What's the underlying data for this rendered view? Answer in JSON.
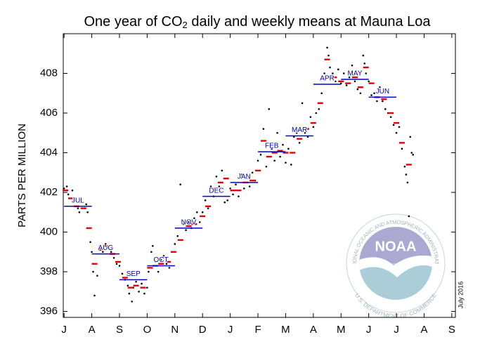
{
  "chart_data": {
    "type": "scatter",
    "title_parts": [
      "One year of CO",
      "2",
      " daily and weekly means at Mauna Loa"
    ],
    "ylabel": "PARTS PER MILLION",
    "annotation": "July 2016",
    "logo": {
      "text": "NOAA",
      "ring_top": "NATIONAL OCEANIC AND ATMOSPHERIC ADMINISTRATION",
      "ring_bottom": "U.S. DEPARTMENT OF COMMERCE"
    },
    "xlim": [
      -0.03,
      14.13
    ],
    "xticks": [
      {
        "value": 0,
        "label": "J"
      },
      {
        "value": 1,
        "label": "A"
      },
      {
        "value": 2,
        "label": "S"
      },
      {
        "value": 3,
        "label": "O"
      },
      {
        "value": 4,
        "label": "N"
      },
      {
        "value": 5,
        "label": "D"
      },
      {
        "value": 6,
        "label": "J"
      },
      {
        "value": 7,
        "label": "F"
      },
      {
        "value": 8,
        "label": "M"
      },
      {
        "value": 9,
        "label": "A"
      },
      {
        "value": 10,
        "label": "M"
      },
      {
        "value": 11,
        "label": "J"
      },
      {
        "value": 12,
        "label": "J"
      },
      {
        "value": 13,
        "label": "A"
      },
      {
        "value": 14,
        "label": "S"
      }
    ],
    "ylim": [
      395.7,
      410
    ],
    "yticks": [
      396,
      398,
      400,
      402,
      404,
      406,
      408
    ],
    "series": [
      {
        "color": "#000000",
        "marker": "dot",
        "x": [
          0.0,
          0.1,
          0.15,
          0.3,
          0.35,
          0.5,
          0.55,
          0.6,
          0.75,
          0.8,
          0.85,
          0.95,
          1.0,
          1.05,
          1.1,
          1.2,
          1.3,
          1.4,
          1.5,
          1.6,
          1.7,
          1.8,
          1.9,
          2.0,
          2.1,
          2.2,
          2.3,
          2.35,
          2.45,
          2.5,
          2.6,
          2.7,
          2.8,
          2.9,
          3.0,
          3.05,
          3.15,
          3.2,
          3.3,
          3.4,
          3.5,
          3.6,
          3.7,
          3.8,
          3.9,
          4.0,
          4.1,
          4.2,
          4.3,
          4.4,
          4.5,
          4.6,
          4.7,
          4.8,
          4.9,
          5.0,
          5.1,
          5.2,
          5.3,
          5.4,
          5.5,
          5.6,
          5.7,
          5.8,
          5.9,
          6.0,
          6.1,
          6.2,
          6.3,
          6.4,
          6.5,
          6.6,
          6.7,
          6.8,
          6.9,
          7.0,
          7.1,
          7.2,
          7.3,
          7.4,
          7.5,
          7.6,
          7.7,
          7.8,
          7.9,
          8.0,
          8.1,
          8.2,
          8.3,
          8.4,
          8.5,
          8.6,
          8.7,
          8.8,
          8.9,
          9.0,
          9.1,
          9.2,
          9.3,
          9.4,
          9.5,
          9.55,
          9.6,
          9.7,
          9.8,
          9.9,
          10.0,
          10.1,
          10.2,
          10.3,
          10.4,
          10.5,
          10.6,
          10.7,
          10.8,
          10.85,
          10.9,
          11.0,
          11.1,
          11.2,
          11.3,
          11.4,
          11.5,
          11.6,
          11.7,
          11.8,
          11.9,
          12.0,
          12.1,
          12.2,
          12.3,
          12.35,
          12.4,
          12.45,
          12.5,
          12.55,
          12.6
        ],
        "values": [
          402.2,
          402.3,
          401.9,
          402.1,
          401.6,
          401.2,
          401.0,
          401.5,
          401.2,
          401.4,
          401.0,
          399.5,
          399.0,
          398.0,
          396.8,
          397.8,
          399.2,
          399.0,
          399.4,
          399.2,
          399.0,
          398.7,
          398.4,
          398.3,
          397.9,
          397.6,
          397.3,
          396.9,
          396.5,
          397.2,
          397.5,
          397.0,
          397.4,
          396.9,
          397.2,
          398.0,
          399.0,
          399.3,
          398.5,
          398.0,
          398.6,
          398.8,
          398.4,
          398.2,
          399.0,
          399.4,
          399.8,
          402.4,
          400.4,
          400.1,
          400.5,
          400.2,
          400.7,
          401.0,
          400.5,
          401.0,
          401.6,
          401.2,
          402.3,
          401.8,
          402.8,
          402.3,
          403.1,
          401.5,
          401.6,
          402.2,
          401.9,
          402.4,
          401.8,
          402.9,
          402.2,
          402.7,
          402.3,
          403.0,
          402.6,
          403.6,
          403.9,
          405.2,
          403.3,
          406.2,
          404.2,
          403.6,
          405.0,
          403.8,
          404.4,
          403.5,
          404.2,
          403.4,
          404.8,
          405.0,
          404.5,
          406.5,
          405.0,
          404.8,
          405.8,
          405.3,
          406.0,
          406.2,
          407.0,
          408.0,
          409.3,
          408.9,
          408.3,
          408.0,
          407.6,
          408.2,
          407.5,
          408.0,
          407.4,
          407.8,
          408.4,
          407.6,
          407.2,
          407.0,
          408.9,
          408.5,
          408.0,
          407.6,
          406.9,
          407.0,
          406.6,
          407.3,
          406.6,
          406.2,
          406.0,
          405.8,
          405.4,
          405.0,
          405.3,
          404.2,
          403.3,
          402.9,
          402.5,
          400.8,
          404.8,
          404.0,
          403.9
        ]
      },
      {
        "color": "#e00000",
        "marker": "dash",
        "x": [
          0.05,
          0.25,
          0.45,
          0.7,
          0.9,
          1.1,
          1.35,
          1.55,
          1.75,
          1.95,
          2.2,
          2.4,
          2.6,
          2.85,
          3.1,
          3.3,
          3.5,
          3.75,
          3.95,
          4.2,
          4.5,
          4.7,
          5.0,
          5.2,
          5.45,
          5.65,
          5.85,
          6.1,
          6.3,
          6.55,
          6.8,
          7.0,
          7.2,
          7.4,
          7.6,
          7.8,
          8.0,
          8.25,
          8.5,
          8.75,
          9.0,
          9.25,
          9.5,
          9.75,
          10.0,
          10.25,
          10.5,
          10.7,
          10.9,
          11.1,
          11.3,
          11.55,
          11.8,
          12.0,
          12.2,
          12.45
        ],
        "values": [
          402.1,
          401.7,
          401.3,
          401.2,
          400.2,
          398.4,
          399.1,
          399.3,
          398.9,
          398.5,
          397.7,
          397.2,
          397.3,
          397.2,
          398.2,
          398.3,
          398.4,
          398.5,
          399.0,
          399.6,
          400.3,
          400.4,
          400.8,
          401.3,
          402.2,
          402.5,
          402.7,
          402.1,
          402.1,
          402.5,
          402.6,
          403.1,
          404.6,
          403.8,
          404.0,
          404.1,
          404.0,
          404.0,
          404.7,
          405.2,
          405.5,
          406.5,
          408.7,
          407.8,
          407.6,
          407.5,
          407.8,
          407.3,
          408.3,
          407.5,
          406.8,
          406.7,
          406.0,
          405.5,
          404.5,
          403.4
        ]
      },
      {
        "color": "#0000c8",
        "marker": "month",
        "x": [
          0,
          1,
          2,
          3,
          4,
          5,
          6,
          7,
          8,
          9,
          10,
          11
        ],
        "labels": [
          "JUL",
          "AUG",
          "SEP",
          "OCT",
          "NOV",
          "DEC",
          "JAN",
          "FEB",
          "MAR",
          "APR",
          "MAY",
          "JUN"
        ],
        "values": [
          401.3,
          398.9,
          397.6,
          398.3,
          400.2,
          401.8,
          402.5,
          404.05,
          404.85,
          407.45,
          407.7,
          406.8
        ]
      }
    ]
  }
}
